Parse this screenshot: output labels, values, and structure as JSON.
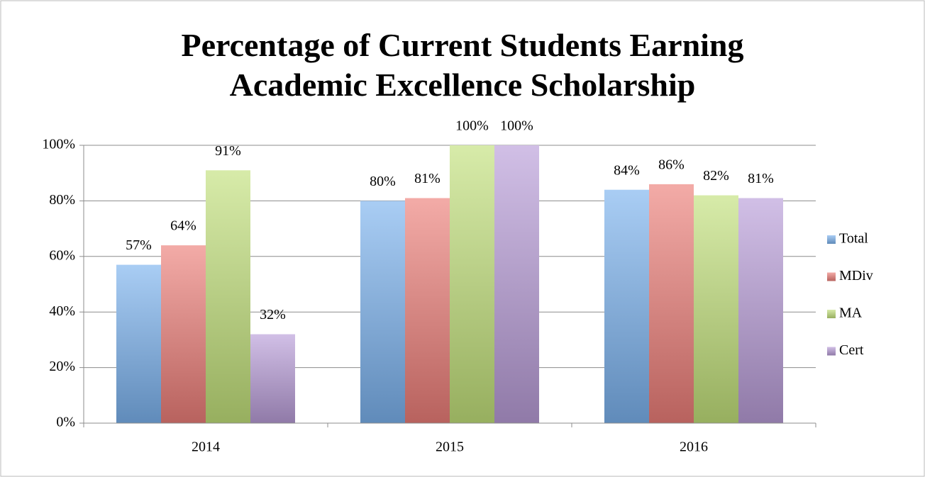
{
  "chart_data": {
    "type": "bar",
    "title": "Percentage of Current Students Earning Academic Excellence Scholarship",
    "categories": [
      "2014",
      "2015",
      "2016"
    ],
    "series": [
      {
        "name": "Total",
        "color": "#7bb2ee",
        "values": [
          57,
          80,
          84
        ],
        "value_labels": [
          "57%",
          "80%",
          "84%"
        ]
      },
      {
        "name": "MDiv",
        "color": "#ec7e78",
        "values": [
          64,
          81,
          86
        ],
        "value_labels": [
          "64%",
          "81%",
          "86%"
        ]
      },
      {
        "name": "MA",
        "color": "#c2e07a",
        "values": [
          91,
          100,
          82
        ],
        "value_labels": [
          "91%",
          "100%",
          "82%"
        ]
      },
      {
        "name": "Cert",
        "color": "#b89cd8",
        "values": [
          32,
          100,
          81
        ],
        "value_labels": [
          "32%",
          "100%",
          "81%"
        ]
      }
    ],
    "ylim": [
      0,
      100
    ],
    "yticks": [
      {
        "value": 0,
        "label": "0%"
      },
      {
        "value": 20,
        "label": "20%"
      },
      {
        "value": 40,
        "label": "40%"
      },
      {
        "value": 60,
        "label": "60%"
      },
      {
        "value": 80,
        "label": "80%"
      },
      {
        "value": 100,
        "label": "100%"
      }
    ],
    "grid": true,
    "legend": "right"
  }
}
